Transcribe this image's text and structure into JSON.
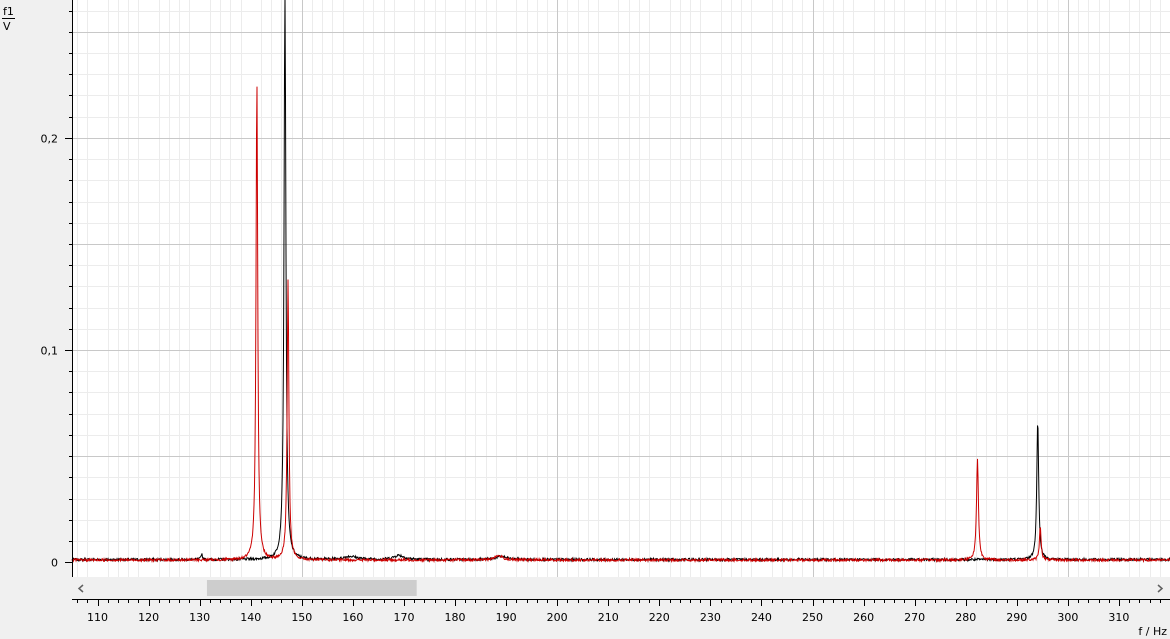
{
  "chart_data": {
    "type": "line",
    "xlabel": "f / Hz",
    "ylabel_top": "f1",
    "ylabel_bottom": "V",
    "xlim": [
      105,
      320
    ],
    "ylim": [
      -0.007,
      0.265
    ],
    "x_ticks": [
      110,
      120,
      130,
      140,
      150,
      160,
      170,
      180,
      190,
      200,
      210,
      220,
      230,
      240,
      250,
      260,
      270,
      280,
      290,
      300,
      310
    ],
    "y_ticks": [
      {
        "value": 0,
        "label": "0"
      },
      {
        "value": 0.1,
        "label": "0,1"
      },
      {
        "value": 0.2,
        "label": "0,2"
      }
    ],
    "grid": true,
    "scrollbar": {
      "visible_from": 128.7,
      "visible_to": 171.2
    },
    "colors": {
      "black_series": "#000000",
      "red_series": "#cc0000"
    },
    "series": [
      {
        "color": "#000000",
        "baseline": 0.0012,
        "peaks": [
          {
            "x": 130.4,
            "y": 0.003,
            "w": 0.15
          },
          {
            "x": 146.7,
            "y": 0.268,
            "w": 0.22
          },
          {
            "x": 294.1,
            "y": 0.066,
            "w": 0.22
          },
          {
            "x": 169.0,
            "y": 0.002,
            "w": 1.2
          },
          {
            "x": 159.5,
            "y": 0.0015,
            "w": 1.5
          },
          {
            "x": 189.0,
            "y": 0.0015,
            "w": 1.2
          }
        ]
      },
      {
        "color": "#cc0000",
        "baseline": 0.001,
        "peaks": [
          {
            "x": 141.2,
            "y": 0.227,
            "w": 0.2
          },
          {
            "x": 147.3,
            "y": 0.132,
            "w": 0.2
          },
          {
            "x": 282.3,
            "y": 0.048,
            "w": 0.22
          },
          {
            "x": 294.6,
            "y": 0.016,
            "w": 0.2
          },
          {
            "x": 188.5,
            "y": 0.002,
            "w": 1.0
          }
        ]
      }
    ]
  }
}
